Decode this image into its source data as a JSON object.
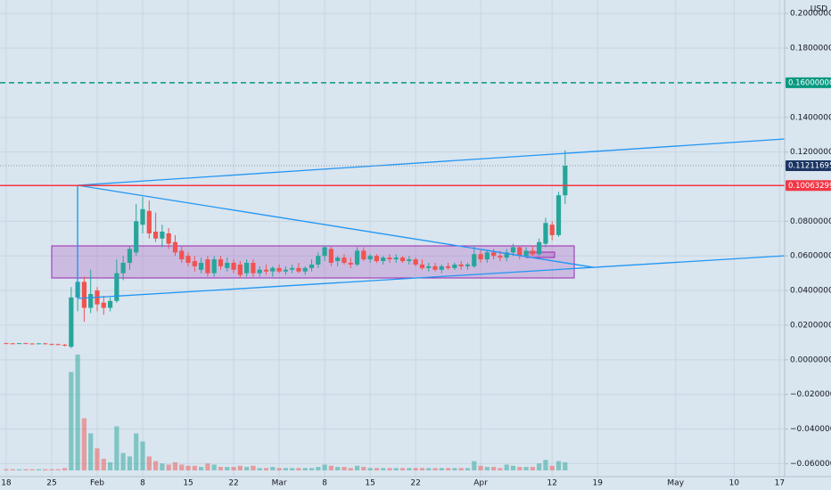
{
  "chart_data": {
    "type": "candlestick",
    "currency": "USD",
    "categories": [
      "18",
      null,
      null,
      null,
      null,
      null,
      null,
      "25",
      null,
      null,
      null,
      null,
      null,
      null,
      "Feb",
      null,
      null,
      null,
      null,
      null,
      null,
      "8",
      null,
      null,
      null,
      null,
      null,
      null,
      "15",
      null,
      null,
      null,
      null,
      null,
      null,
      "22",
      null,
      null,
      null,
      null,
      null,
      null,
      "Mar",
      null,
      null,
      null,
      null,
      null,
      null,
      "8",
      null,
      null,
      null,
      null,
      null,
      null,
      "15",
      null,
      null,
      null,
      null,
      null,
      null,
      "22",
      null,
      null,
      null,
      null,
      null,
      null,
      null,
      null,
      null,
      "Apr",
      null,
      null,
      null,
      null,
      null,
      null,
      null,
      null,
      null,
      null,
      "12",
      null,
      null,
      null,
      null,
      null,
      null,
      "19",
      null,
      null,
      null,
      null,
      null,
      null,
      null,
      null,
      null,
      null,
      null,
      "May",
      null,
      null,
      null,
      null,
      null,
      null,
      null,
      null,
      "10",
      null,
      null,
      null,
      null,
      null,
      null,
      "17"
    ],
    "ohlc": [
      [
        0.0096,
        0.0098,
        0.0093,
        0.0095
      ],
      [
        0.0095,
        0.0097,
        0.0092,
        0.0094
      ],
      [
        0.0094,
        0.0097,
        0.0092,
        0.0096
      ],
      [
        0.0096,
        0.0098,
        0.0093,
        0.0094
      ],
      [
        0.0094,
        0.0096,
        0.0091,
        0.0093
      ],
      [
        0.0093,
        0.0096,
        0.009,
        0.0095
      ],
      [
        0.0095,
        0.0097,
        0.009,
        0.0091
      ],
      [
        0.0091,
        0.0094,
        0.0087,
        0.009
      ],
      [
        0.009,
        0.0093,
        0.0085,
        0.0087
      ],
      [
        0.0087,
        0.0091,
        0.0078,
        0.0082
      ],
      [
        0.0075,
        0.042,
        0.0068,
        0.036
      ],
      [
        0.036,
        0.1006,
        0.028,
        0.045
      ],
      [
        0.045,
        0.048,
        0.022,
        0.03
      ],
      [
        0.03,
        0.052,
        0.027,
        0.038
      ],
      [
        0.04,
        0.042,
        0.028,
        0.032
      ],
      [
        0.033,
        0.037,
        0.026,
        0.03
      ],
      [
        0.03,
        0.036,
        0.028,
        0.034
      ],
      [
        0.034,
        0.058,
        0.033,
        0.05
      ],
      [
        0.05,
        0.06,
        0.046,
        0.056
      ],
      [
        0.056,
        0.066,
        0.052,
        0.064
      ],
      [
        0.062,
        0.09,
        0.06,
        0.08
      ],
      [
        0.078,
        0.094,
        0.073,
        0.087
      ],
      [
        0.086,
        0.092,
        0.07,
        0.073
      ],
      [
        0.074,
        0.085,
        0.068,
        0.07
      ],
      [
        0.07,
        0.078,
        0.065,
        0.074
      ],
      [
        0.073,
        0.076,
        0.064,
        0.067
      ],
      [
        0.068,
        0.072,
        0.06,
        0.062
      ],
      [
        0.063,
        0.066,
        0.056,
        0.058
      ],
      [
        0.06,
        0.062,
        0.054,
        0.056
      ],
      [
        0.057,
        0.06,
        0.051,
        0.054
      ],
      [
        0.052,
        0.059,
        0.05,
        0.056
      ],
      [
        0.058,
        0.06,
        0.048,
        0.05
      ],
      [
        0.05,
        0.06,
        0.048,
        0.058
      ],
      [
        0.058,
        0.06,
        0.052,
        0.054
      ],
      [
        0.053,
        0.059,
        0.051,
        0.056
      ],
      [
        0.056,
        0.058,
        0.05,
        0.052
      ],
      [
        0.055,
        0.057,
        0.047,
        0.049
      ],
      [
        0.05,
        0.058,
        0.048,
        0.056
      ],
      [
        0.056,
        0.058,
        0.048,
        0.05
      ],
      [
        0.05,
        0.054,
        0.048,
        0.052
      ],
      [
        0.052,
        0.055,
        0.049,
        0.051
      ],
      [
        0.051,
        0.054,
        0.048,
        0.053
      ],
      [
        0.053,
        0.055,
        0.05,
        0.051
      ],
      [
        0.051,
        0.054,
        0.049,
        0.052
      ],
      [
        0.052,
        0.055,
        0.05,
        0.053
      ],
      [
        0.053,
        0.056,
        0.05,
        0.051
      ],
      [
        0.051,
        0.054,
        0.049,
        0.053
      ],
      [
        0.053,
        0.058,
        0.051,
        0.055
      ],
      [
        0.055,
        0.062,
        0.053,
        0.06
      ],
      [
        0.06,
        0.066,
        0.057,
        0.065
      ],
      [
        0.064,
        0.066,
        0.054,
        0.056
      ],
      [
        0.057,
        0.06,
        0.054,
        0.059
      ],
      [
        0.059,
        0.061,
        0.055,
        0.056
      ],
      [
        0.056,
        0.059,
        0.053,
        0.055
      ],
      [
        0.055,
        0.065,
        0.054,
        0.063
      ],
      [
        0.063,
        0.065,
        0.057,
        0.058
      ],
      [
        0.058,
        0.061,
        0.056,
        0.06
      ],
      [
        0.06,
        0.061,
        0.056,
        0.057
      ],
      [
        0.057,
        0.06,
        0.055,
        0.059
      ],
      [
        0.059,
        0.061,
        0.056,
        0.058
      ],
      [
        0.058,
        0.061,
        0.056,
        0.059
      ],
      [
        0.059,
        0.06,
        0.056,
        0.057
      ],
      [
        0.057,
        0.06,
        0.055,
        0.058
      ],
      [
        0.058,
        0.059,
        0.054,
        0.055
      ],
      [
        0.055,
        0.058,
        0.052,
        0.053
      ],
      [
        0.053,
        0.056,
        0.051,
        0.054
      ],
      [
        0.054,
        0.056,
        0.051,
        0.052
      ],
      [
        0.052,
        0.055,
        0.05,
        0.054
      ],
      [
        0.054,
        0.056,
        0.052,
        0.053
      ],
      [
        0.053,
        0.056,
        0.052,
        0.055
      ],
      [
        0.055,
        0.057,
        0.052,
        0.054
      ],
      [
        0.054,
        0.056,
        0.052,
        0.055
      ],
      [
        0.054,
        0.066,
        0.053,
        0.061
      ],
      [
        0.061,
        0.064,
        0.056,
        0.058
      ],
      [
        0.058,
        0.063,
        0.056,
        0.062
      ],
      [
        0.062,
        0.064,
        0.058,
        0.06
      ],
      [
        0.06,
        0.063,
        0.057,
        0.059
      ],
      [
        0.059,
        0.064,
        0.057,
        0.062
      ],
      [
        0.062,
        0.067,
        0.06,
        0.065
      ],
      [
        0.065,
        0.066,
        0.058,
        0.06
      ],
      [
        0.06,
        0.065,
        0.059,
        0.063
      ],
      [
        0.063,
        0.066,
        0.06,
        0.061
      ],
      [
        0.061,
        0.07,
        0.06,
        0.068
      ],
      [
        0.067,
        0.082,
        0.065,
        0.079
      ],
      [
        0.078,
        0.08,
        0.069,
        0.072
      ],
      [
        0.072,
        0.097,
        0.071,
        0.095
      ],
      [
        0.095,
        0.121,
        0.09,
        0.1121
      ],
      null,
      null,
      null,
      null,
      null,
      null,
      null,
      null,
      null,
      null,
      null,
      null,
      null,
      null,
      null,
      null,
      null,
      null,
      null,
      null,
      null,
      null,
      null,
      null,
      null,
      null,
      null,
      null,
      null,
      null,
      null,
      null,
      null
    ],
    "volume": [
      1,
      1,
      1,
      1,
      1,
      1,
      1,
      1,
      1,
      2,
      85,
      100,
      45,
      32,
      19,
      10,
      7,
      38,
      15,
      12,
      32,
      25,
      12,
      8,
      6,
      5,
      7,
      5,
      4,
      4,
      3,
      6,
      5,
      3,
      3,
      3,
      4,
      3,
      4,
      2,
      2,
      3,
      2,
      2,
      2,
      2,
      2,
      2,
      3,
      5,
      4,
      3,
      3,
      2,
      4,
      3,
      2,
      2,
      2,
      2,
      2,
      2,
      2,
      2,
      2,
      2,
      2,
      2,
      2,
      2,
      2,
      2,
      8,
      4,
      3,
      3,
      2,
      5,
      4,
      3,
      3,
      3,
      6,
      9,
      4,
      8,
      7,
      null,
      null,
      null,
      null,
      null,
      null,
      null,
      null,
      null,
      null,
      null,
      null,
      null,
      null,
      null,
      null,
      null,
      null,
      null,
      null,
      null,
      null,
      null,
      null,
      null,
      null,
      null,
      null,
      null,
      null,
      null,
      null,
      null
    ],
    "up_color": "#26a69a",
    "down_color": "#ef5350",
    "ylim": [
      -0.0675,
      0.2078
    ],
    "vlim": [
      0,
      100
    ],
    "yticks": [
      {
        "value": 0.2,
        "label": "0.20000000"
      },
      {
        "value": 0.18,
        "label": "0.18000000"
      },
      {
        "value": 0.14,
        "label": "0.14000000"
      },
      {
        "value": 0.12,
        "label": "0.12000000"
      },
      {
        "value": 0.08,
        "label": "0.08000000"
      },
      {
        "value": 0.06,
        "label": "0.06000000"
      },
      {
        "value": 0.04,
        "label": "0.04000000"
      },
      {
        "value": 0.02,
        "label": "0.02000000"
      },
      {
        "value": 0,
        "label": "0.00000000"
      },
      {
        "value": -0.02,
        "label": "−0.02000000"
      },
      {
        "value": -0.04,
        "label": "−0.04000000"
      },
      {
        "value": -0.06,
        "label": "−0.06000000"
      }
    ],
    "hlines": [
      {
        "value": 0.16,
        "label": "0.16000000",
        "color": "#089981",
        "style": "dashed"
      },
      {
        "value": 0.11211695,
        "label": "0.11211695",
        "color": "#1c3664",
        "style": "dotted"
      },
      {
        "value": 0.10063299,
        "label": "0.10063299",
        "color": "#f23645",
        "style": "solid"
      }
    ],
    "grid": true
  }
}
